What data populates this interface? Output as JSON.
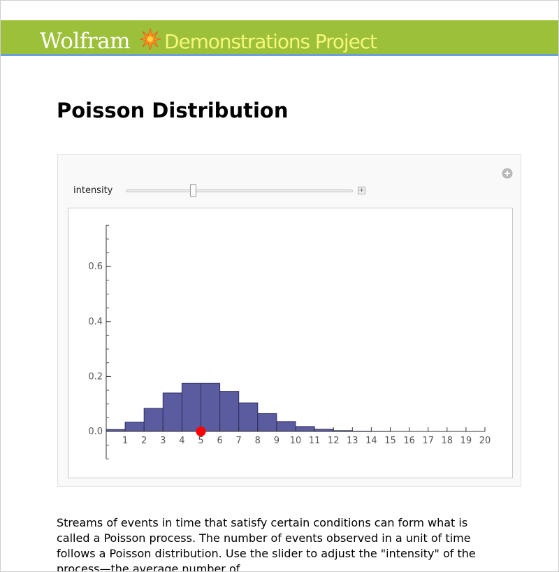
{
  "header": {
    "brand_wolfram": "Wolfram",
    "brand_rest": "Demonstrations Project",
    "colors": {
      "banner": "#9dc03a",
      "accent_line": "#6aa0d6",
      "brand_rest_text": "#f6f77a"
    }
  },
  "page": {
    "title": "Poisson Distribution"
  },
  "controls": {
    "slider_label": "intensity",
    "slider_value_fraction": 0.29,
    "expand_icon": "plus-circle-icon",
    "slider_plus_icon": "plus-box-icon"
  },
  "chart_data": {
    "type": "bar",
    "categories": [
      "0",
      "1",
      "2",
      "3",
      "4",
      "5",
      "6",
      "7",
      "8",
      "9",
      "10",
      "11",
      "12",
      "13",
      "14",
      "15",
      "16",
      "17",
      "18",
      "19",
      "20"
    ],
    "values": [
      0.007,
      0.034,
      0.084,
      0.14,
      0.175,
      0.175,
      0.146,
      0.104,
      0.065,
      0.036,
      0.018,
      0.008,
      0.003,
      0.001,
      0.0005,
      0,
      0,
      0,
      0,
      0,
      0
    ],
    "x_tick_labels": [
      "1",
      "2",
      "3",
      "4",
      "5",
      "6",
      "7",
      "8",
      "9",
      "10",
      "11",
      "12",
      "13",
      "14",
      "15",
      "16",
      "17",
      "18",
      "19",
      "20"
    ],
    "y_tick_labels": [
      "0.0",
      "0.2",
      "0.4",
      "0.6"
    ],
    "y_ticks": [
      0,
      0.2,
      0.4,
      0.6
    ],
    "ylim": [
      -0.1,
      0.75
    ],
    "marker": {
      "x": 5,
      "y": 0,
      "color": "#ff0000"
    },
    "bar_color": "#5b5b9f",
    "bar_edge": "#303060"
  },
  "description": {
    "text": "Streams of events in time that satisfy certain conditions can form what is called a Poisson process. The number of events observed in a unit of time follows a Poisson distribution. Use the slider to adjust the \"intensity\" of the process—the average number of"
  }
}
